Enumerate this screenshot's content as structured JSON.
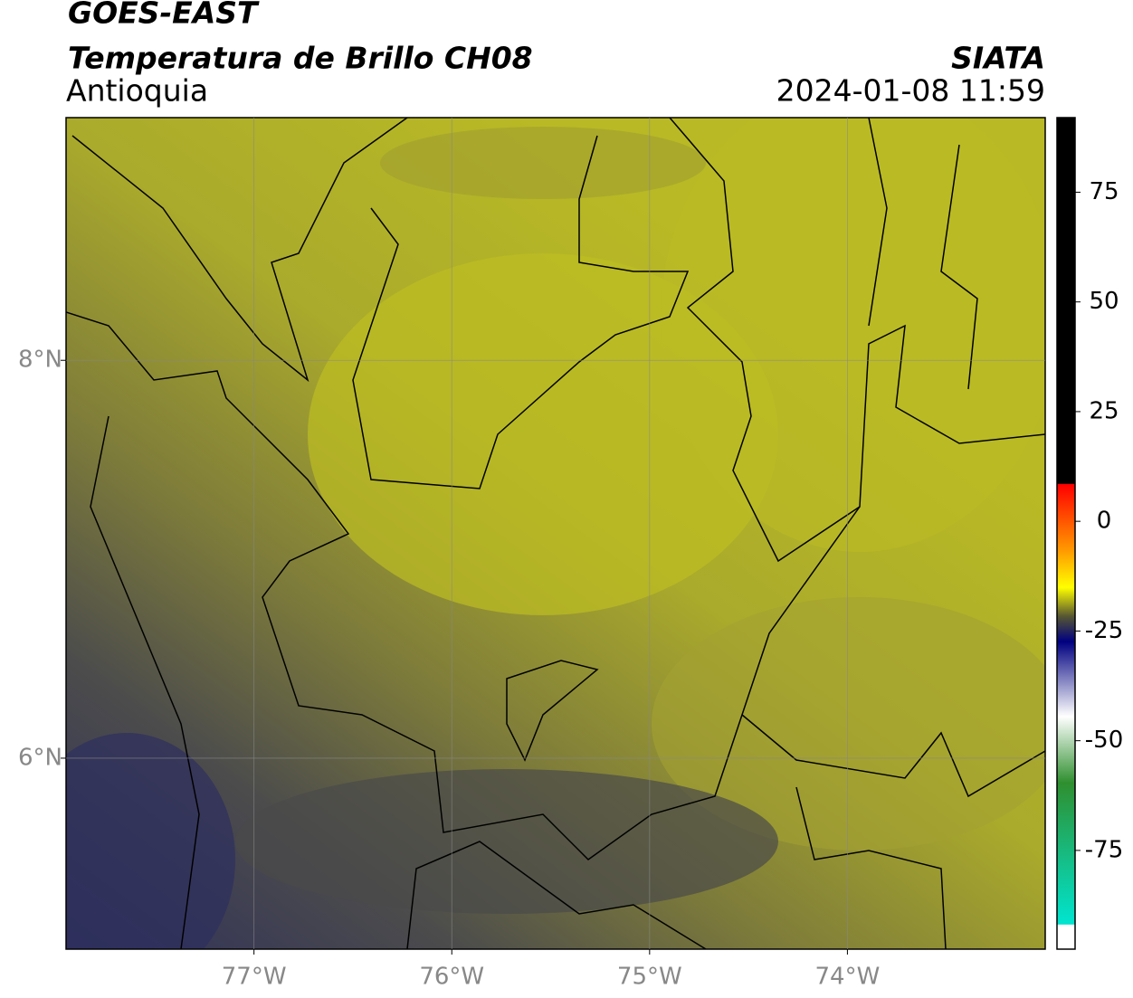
{
  "header": {
    "title": "GOES-EAST",
    "subtitle": "Temperatura de Brillo CH08",
    "region": "Antioquia",
    "source": "SIATA",
    "datetime": "2024-01-08 11:59"
  },
  "map": {
    "lonlim": [
      -77.95,
      -73.0
    ],
    "latlim": [
      5.04,
      9.22
    ],
    "lonticks": [
      {
        "value": -77,
        "label": "77°W"
      },
      {
        "value": -76,
        "label": "76°W"
      },
      {
        "value": -75,
        "label": "75°W"
      },
      {
        "value": -74,
        "label": "74°W"
      }
    ],
    "latticks": [
      {
        "value": 8,
        "label": "8°N"
      },
      {
        "value": 6,
        "label": "6°N"
      }
    ]
  },
  "colorbar": {
    "lim": [
      -97.5,
      92
    ],
    "ticks": [
      75,
      50,
      25,
      0,
      -25,
      -50,
      -75
    ]
  }
}
